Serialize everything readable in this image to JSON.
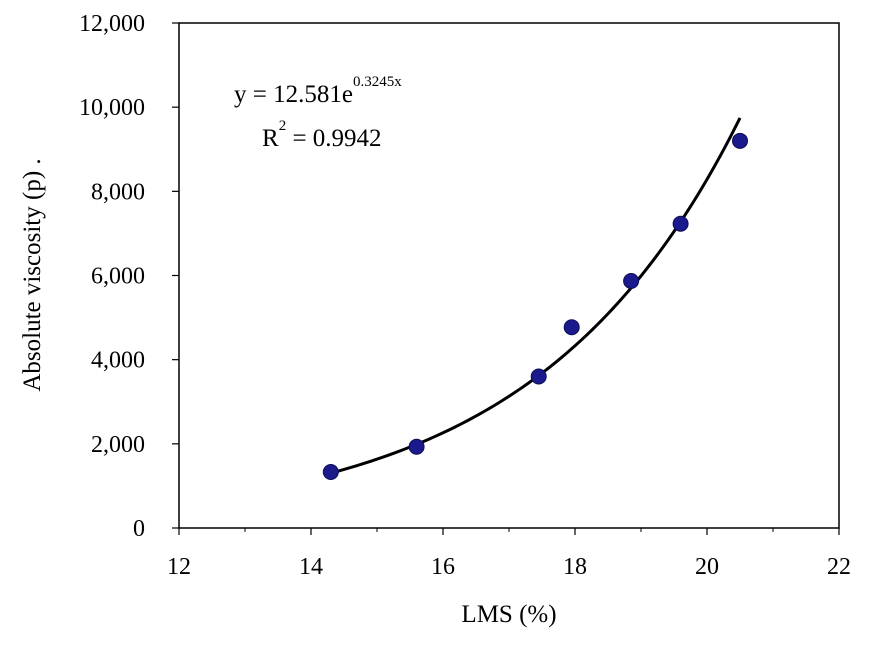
{
  "chart_data": {
    "type": "scatter",
    "title": "",
    "xlabel": "LMS (%)",
    "ylabel": "Absolute viscosity (p) .",
    "xlim": [
      12,
      22
    ],
    "ylim": [
      0,
      12000
    ],
    "x_ticks": [
      12,
      14,
      16,
      18,
      20,
      22
    ],
    "x_tick_labels": [
      "12",
      "14",
      "16",
      "18",
      "20",
      "22"
    ],
    "y_ticks": [
      0,
      2000,
      4000,
      6000,
      8000,
      10000,
      12000
    ],
    "y_tick_labels": [
      "0",
      "2,000",
      "4,000",
      "6,000",
      "8,000",
      "10,000",
      "12,000"
    ],
    "grid": false,
    "series": [
      {
        "marker_color": "#1a1a8c",
        "points": [
          {
            "x": 14.3,
            "y": 1330
          },
          {
            "x": 15.6,
            "y": 1930
          },
          {
            "x": 17.45,
            "y": 3600
          },
          {
            "x": 17.95,
            "y": 4770
          },
          {
            "x": 18.85,
            "y": 5870
          },
          {
            "x": 19.6,
            "y": 7230
          },
          {
            "x": 20.5,
            "y": 9200
          }
        ]
      }
    ],
    "trendline": {
      "type": "exponential",
      "a": 12.581,
      "b": 0.3245,
      "x_range": [
        14.3,
        20.5
      ],
      "color": "#000000"
    },
    "annotation": {
      "equation_main": "y = 12.581e",
      "equation_exponent": "0.3245x",
      "r2_base": "R",
      "r2_exponent": "2",
      "r2_value": " = 0.9942"
    }
  }
}
